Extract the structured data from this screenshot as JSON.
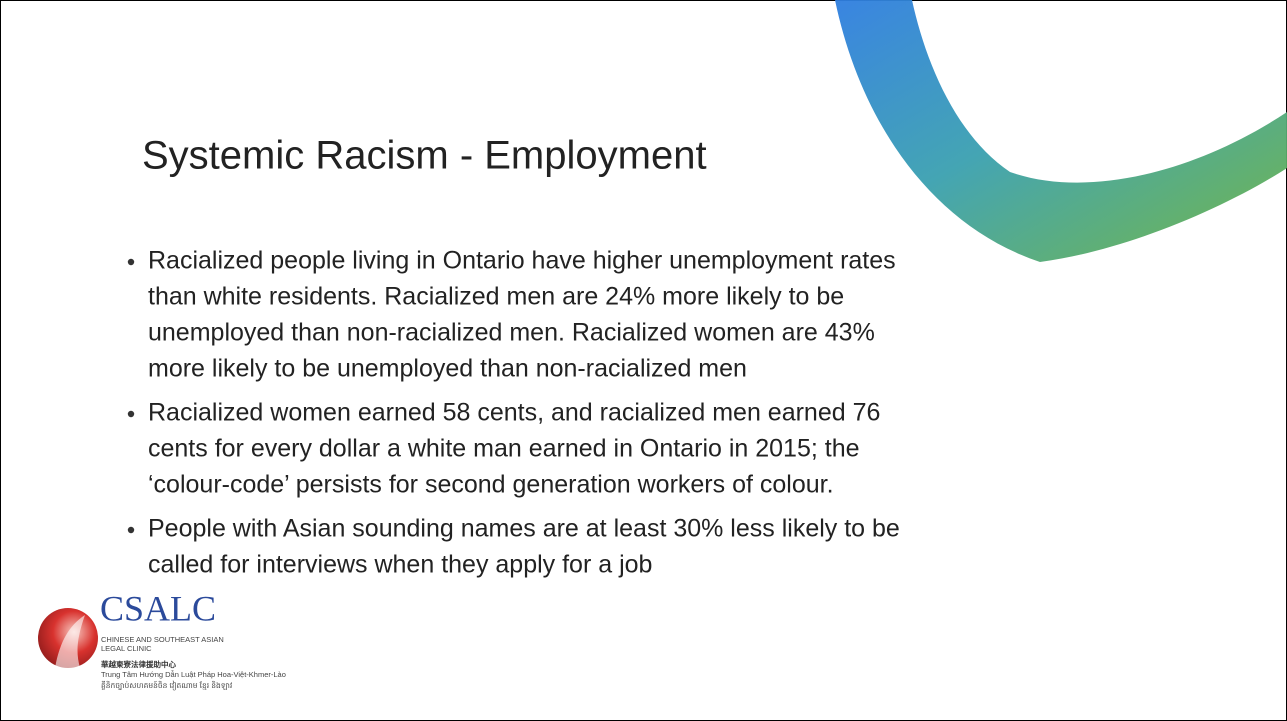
{
  "slide": {
    "title": "Systemic Racism - Employment",
    "bullets": [
      {
        "lines": [
          "Racialized people living in Ontario have higher unemployment rates",
          "than white residents. Racialized men are 24% more likely to be",
          "unemployed than non-racialized men. Racialized women are 43%",
          "more likely to be unemployed than non-racialized men"
        ]
      },
      {
        "lines": [
          "Racialized women earned 58 cents, and racialized men earned 76",
          "cents for every dollar a white man earned in Ontario in 2015; the",
          "‘colour-code’ persists for second generation workers of colour."
        ]
      },
      {
        "lines": [
          "People with Asian sounding names are at least 30% less likely to be",
          "called for interviews when they apply for a job"
        ]
      }
    ],
    "logo": {
      "name": "CSALC",
      "subtitle": [
        "CHINESE AND SOUTHEAST ASIAN",
        "LEGAL CLINIC"
      ],
      "chinese": "華越柬寮法律援助中心",
      "vietnamese": "Trung Tâm Hướng Dẫn Luật Pháp Hoa-Việt-Khmer-Lào",
      "khmer": "គ្លីនិកច្បាប់សហគមន៍ចិន វៀតណាម ខ្មែរ និងឡាវ"
    }
  }
}
